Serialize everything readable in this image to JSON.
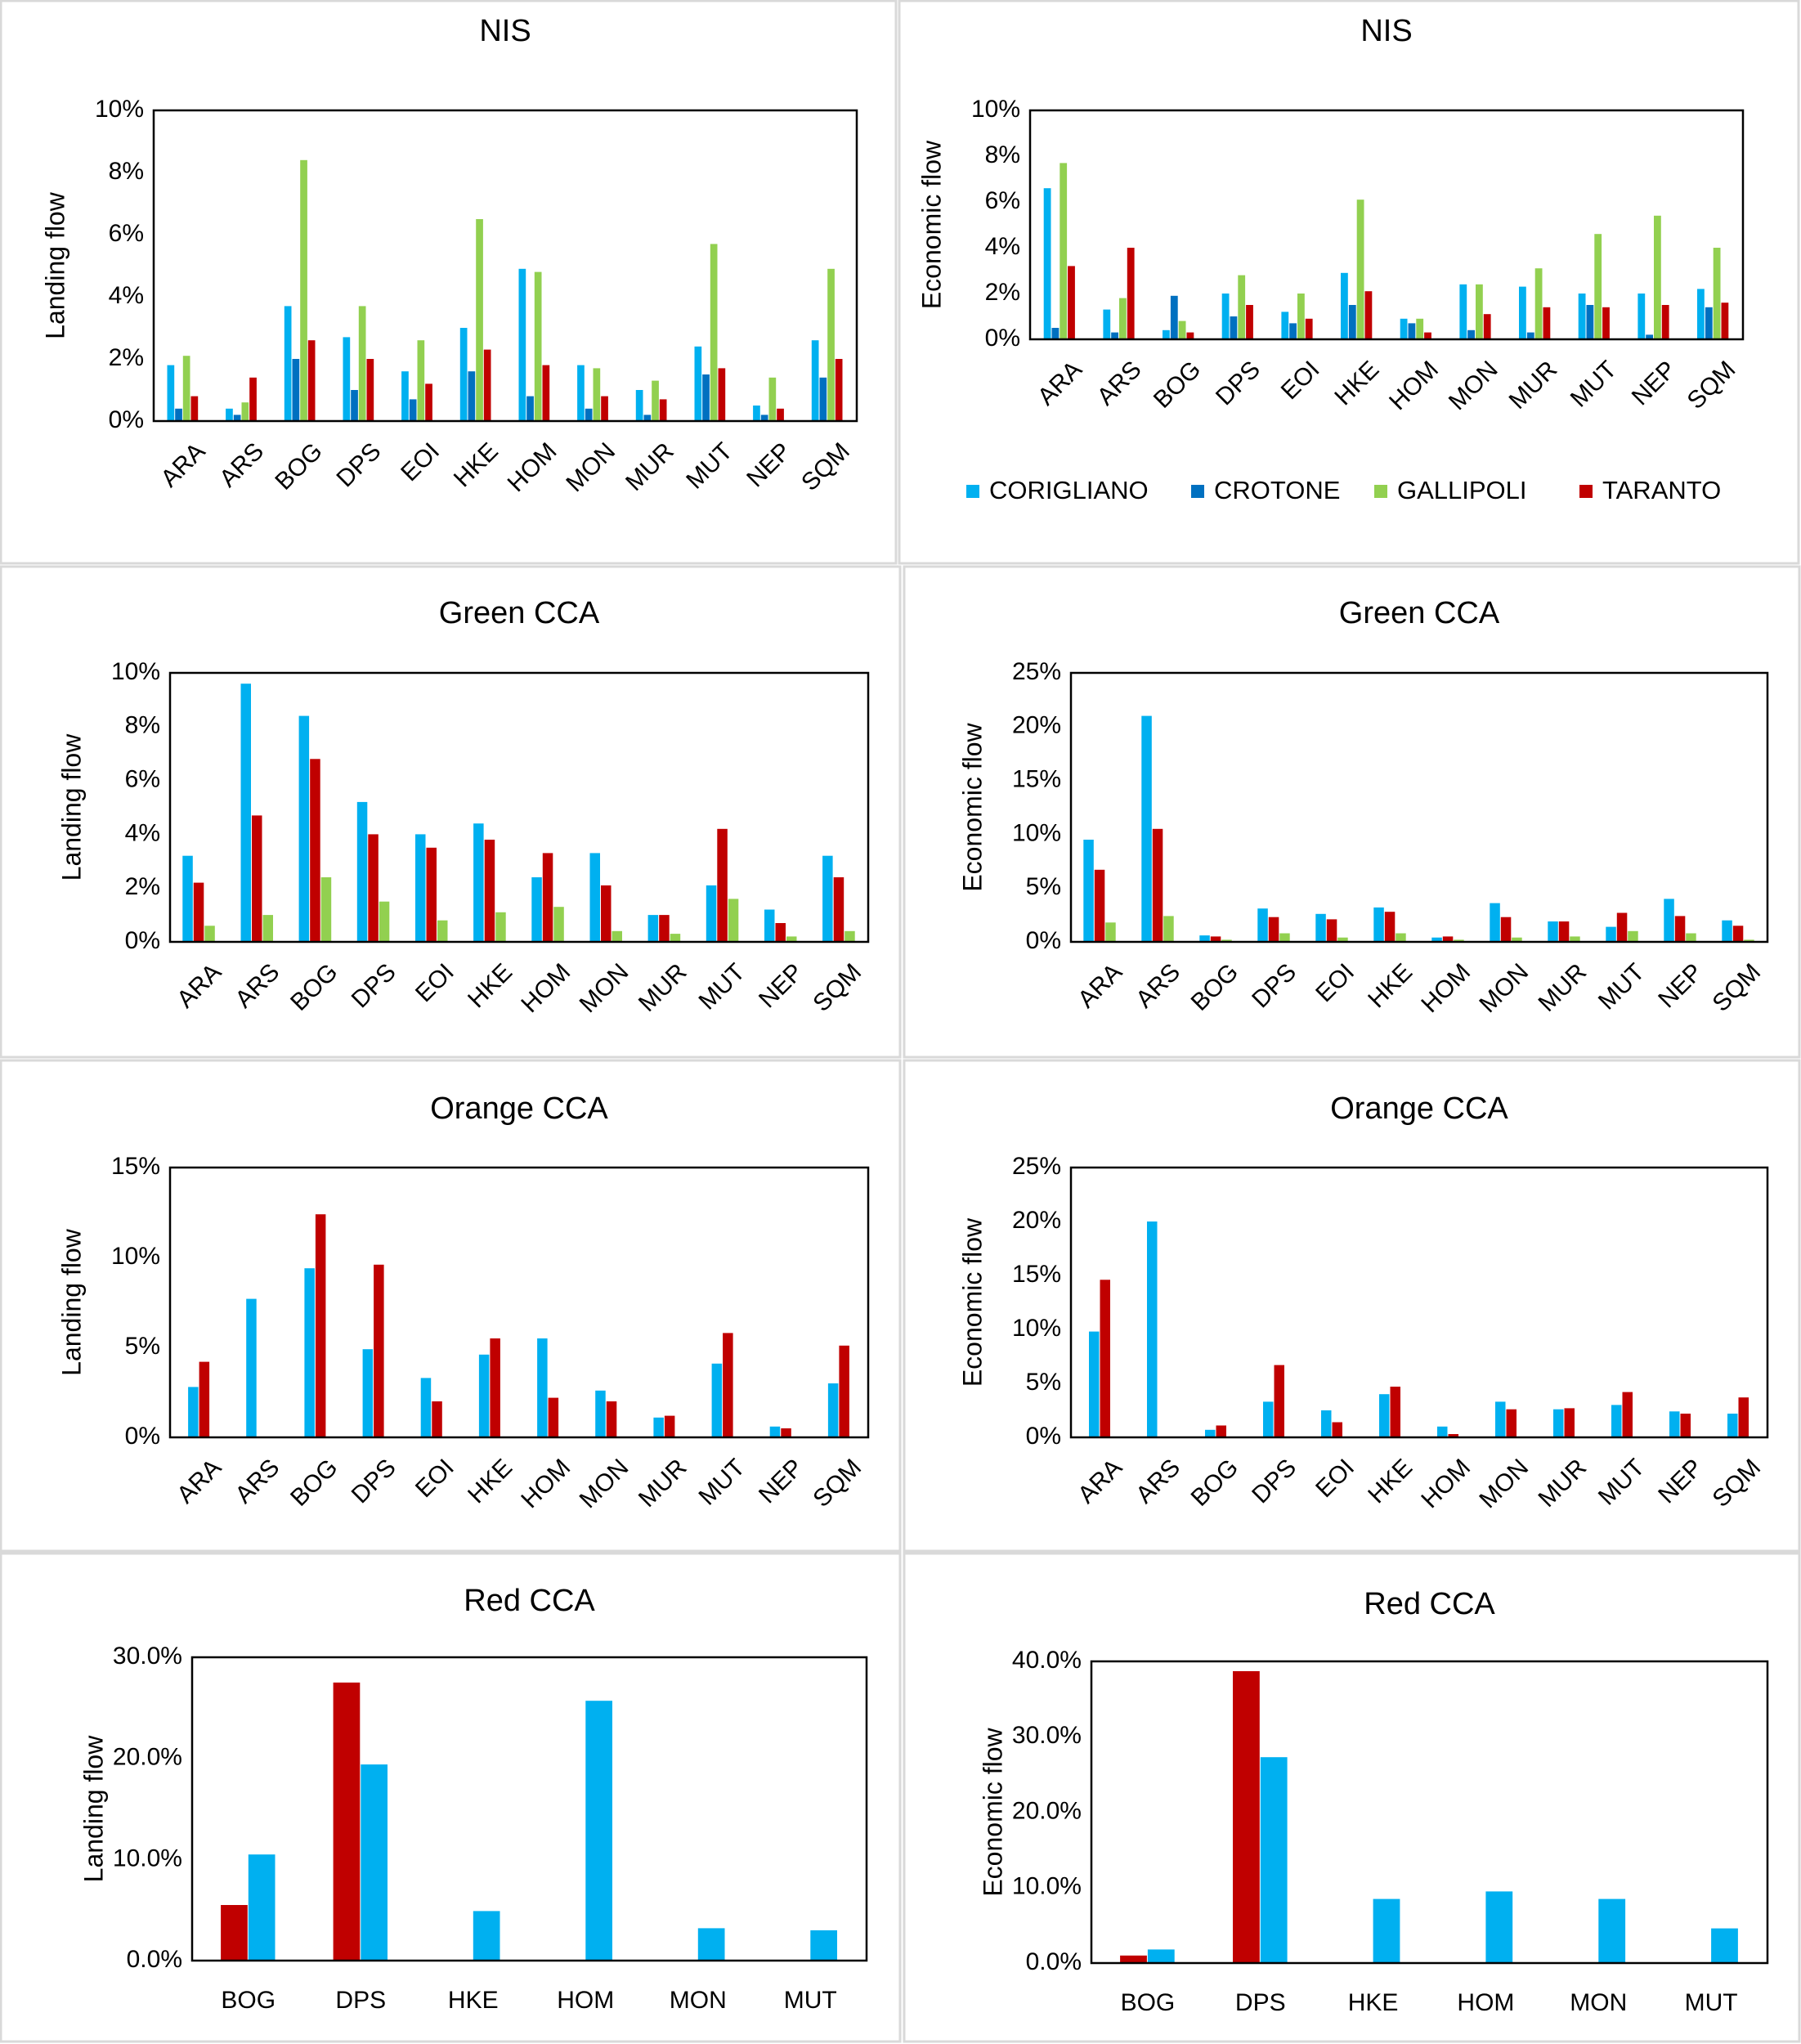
{
  "series_meta": [
    {
      "name": "CORIGLIANO",
      "color": "#00B0F0"
    },
    {
      "name": "CROTONE",
      "color": "#0070C0"
    },
    {
      "name": "GALLIPOLI",
      "color": "#92D050"
    },
    {
      "name": "TARANTO",
      "color": "#C00000"
    }
  ],
  "legend_labels": [
    "CORIGLIANO",
    "CROTONE",
    "GALLIPOLI",
    "TARANTO"
  ],
  "chart_data": [
    {
      "type": "bar",
      "title": "NIS",
      "ylabel": "Landing flow",
      "ylim": [
        0,
        10
      ],
      "yticks": [
        0,
        2,
        4,
        6,
        8,
        10
      ],
      "ytick_format": "%",
      "x_rotated": true,
      "grid": false,
      "legend": "none",
      "categories": [
        "ARA",
        "ARS",
        "BOG",
        "DPS",
        "EOI",
        "HKE",
        "HOM",
        "MON",
        "MUR",
        "MUT",
        "NEP",
        "SQM"
      ],
      "series": [
        {
          "name": "CORIGLIANO",
          "values": [
            1.8,
            0.4,
            3.7,
            2.7,
            1.6,
            3.0,
            4.9,
            1.8,
            1.0,
            2.4,
            0.5,
            2.6
          ]
        },
        {
          "name": "CROTONE",
          "values": [
            0.4,
            0.2,
            2.0,
            1.0,
            0.7,
            1.6,
            0.8,
            0.4,
            0.2,
            1.5,
            0.2,
            1.4
          ]
        },
        {
          "name": "GALLIPOLI",
          "values": [
            2.1,
            0.6,
            8.4,
            3.7,
            2.6,
            6.5,
            4.8,
            1.7,
            1.3,
            5.7,
            1.4,
            4.9
          ]
        },
        {
          "name": "TARANTO",
          "values": [
            0.8,
            1.4,
            2.6,
            2.0,
            1.2,
            2.3,
            1.8,
            0.8,
            0.7,
            1.7,
            0.4,
            2.0
          ]
        }
      ]
    },
    {
      "type": "bar",
      "title": "NIS",
      "ylabel": "Economic flow",
      "ylim": [
        0,
        10
      ],
      "yticks": [
        0,
        2,
        4,
        6,
        8,
        10
      ],
      "ytick_format": "%",
      "x_rotated": true,
      "grid": false,
      "legend": "bottom",
      "categories": [
        "ARA",
        "ARS",
        "BOG",
        "DPS",
        "EOI",
        "HKE",
        "HOM",
        "MON",
        "MUR",
        "MUT",
        "NEP",
        "SQM"
      ],
      "series": [
        {
          "name": "CORIGLIANO",
          "values": [
            6.6,
            1.3,
            0.4,
            2.0,
            1.2,
            2.9,
            0.9,
            2.4,
            2.3,
            2.0,
            2.0,
            2.2
          ]
        },
        {
          "name": "CROTONE",
          "values": [
            0.5,
            0.3,
            1.9,
            1.0,
            0.7,
            1.5,
            0.7,
            0.4,
            0.3,
            1.5,
            0.2,
            1.4
          ]
        },
        {
          "name": "GALLIPOLI",
          "values": [
            7.7,
            1.8,
            0.8,
            2.8,
            2.0,
            6.1,
            0.9,
            2.4,
            3.1,
            4.6,
            5.4,
            4.0
          ]
        },
        {
          "name": "TARANTO",
          "values": [
            3.2,
            4.0,
            0.3,
            1.5,
            0.9,
            2.1,
            0.3,
            1.1,
            1.4,
            1.4,
            1.5,
            1.6
          ]
        }
      ]
    },
    {
      "type": "bar",
      "title": "Green CCA",
      "ylabel": "Landing flow",
      "ylim": [
        0,
        10
      ],
      "yticks": [
        0,
        2,
        4,
        6,
        8,
        10
      ],
      "ytick_format": "%",
      "x_rotated": true,
      "grid": false,
      "legend": "none",
      "categories": [
        "ARA",
        "ARS",
        "BOG",
        "DPS",
        "EOI",
        "HKE",
        "HOM",
        "MON",
        "MUR",
        "MUT",
        "NEP",
        "SQM"
      ],
      "series": [
        {
          "name": "CORIGLIANO",
          "values": [
            3.2,
            9.6,
            8.4,
            5.2,
            4.0,
            4.4,
            2.4,
            3.3,
            1.0,
            2.1,
            1.2,
            3.2
          ]
        },
        {
          "name": "TARANTO",
          "values": [
            2.2,
            4.7,
            6.8,
            4.0,
            3.5,
            3.8,
            3.3,
            2.1,
            1.0,
            4.2,
            0.7,
            2.4
          ]
        },
        {
          "name": "GALLIPOLI",
          "values": [
            0.6,
            1.0,
            2.4,
            1.5,
            0.8,
            1.1,
            1.3,
            0.4,
            0.3,
            1.6,
            0.2,
            0.4
          ]
        }
      ]
    },
    {
      "type": "bar",
      "title": "Green CCA",
      "ylabel": "Economic flow",
      "ylim": [
        0,
        25
      ],
      "yticks": [
        0,
        5,
        10,
        15,
        20,
        25
      ],
      "ytick_format": "%",
      "x_rotated": true,
      "grid": false,
      "legend": "none",
      "categories": [
        "ARA",
        "ARS",
        "BOG",
        "DPS",
        "EOI",
        "HKE",
        "HOM",
        "MON",
        "MUR",
        "MUT",
        "NEP",
        "SQM"
      ],
      "series": [
        {
          "name": "CORIGLIANO",
          "values": [
            9.5,
            21.0,
            0.6,
            3.1,
            2.6,
            3.2,
            0.4,
            3.6,
            1.9,
            1.4,
            4.0,
            2.0
          ]
        },
        {
          "name": "TARANTO",
          "values": [
            6.7,
            10.5,
            0.5,
            2.3,
            2.1,
            2.8,
            0.5,
            2.3,
            1.9,
            2.7,
            2.4,
            1.5
          ]
        },
        {
          "name": "GALLIPOLI",
          "values": [
            1.8,
            2.4,
            0.2,
            0.8,
            0.4,
            0.8,
            0.2,
            0.4,
            0.5,
            1.0,
            0.8,
            0.2
          ]
        }
      ]
    },
    {
      "type": "bar",
      "title": "Orange CCA",
      "ylabel": "Landing flow",
      "ylim": [
        0,
        15
      ],
      "yticks": [
        0,
        5,
        10,
        15
      ],
      "ytick_format": "%",
      "x_rotated": true,
      "grid": false,
      "legend": "none",
      "categories": [
        "ARA",
        "ARS",
        "BOG",
        "DPS",
        "EOI",
        "HKE",
        "HOM",
        "MON",
        "MUR",
        "MUT",
        "NEP",
        "SQM"
      ],
      "series": [
        {
          "name": "CORIGLIANO",
          "values": [
            2.8,
            7.7,
            9.4,
            4.9,
            3.3,
            4.6,
            5.5,
            2.6,
            1.1,
            4.1,
            0.6,
            3.0
          ]
        },
        {
          "name": "TARANTO",
          "values": [
            4.2,
            0,
            12.4,
            9.6,
            2.0,
            5.5,
            2.2,
            2.0,
            1.2,
            5.8,
            0.5,
            5.1
          ]
        }
      ]
    },
    {
      "type": "bar",
      "title": "Orange CCA",
      "ylabel": "Economic flow",
      "ylim": [
        0,
        25
      ],
      "yticks": [
        0,
        5,
        10,
        15,
        20,
        25
      ],
      "ytick_format": "%",
      "x_rotated": true,
      "grid": false,
      "legend": "none",
      "categories": [
        "ARA",
        "ARS",
        "BOG",
        "DPS",
        "EOI",
        "HKE",
        "HOM",
        "MON",
        "MUR",
        "MUT",
        "NEP",
        "SQM"
      ],
      "series": [
        {
          "name": "CORIGLIANO",
          "values": [
            9.8,
            20.0,
            0.7,
            3.3,
            2.5,
            4.0,
            1.0,
            3.3,
            2.6,
            3.0,
            2.4,
            2.2
          ]
        },
        {
          "name": "TARANTO",
          "values": [
            14.6,
            0,
            1.1,
            6.7,
            1.4,
            4.7,
            0.3,
            2.6,
            2.7,
            4.2,
            2.2,
            3.7
          ]
        }
      ]
    },
    {
      "type": "bar",
      "title": "Red CCA",
      "ylabel": "Landing flow",
      "ylim": [
        0,
        30
      ],
      "yticks": [
        0,
        10,
        20,
        30
      ],
      "ytick_format": "%.1",
      "x_rotated": false,
      "grid": false,
      "legend": "none",
      "categories": [
        "BOG",
        "DPS",
        "HKE",
        "HOM",
        "MON",
        "MUT"
      ],
      "series": [
        {
          "name": "TARANTO",
          "values": [
            5.5,
            27.5,
            0,
            0,
            0,
            0
          ]
        },
        {
          "name": "CORIGLIANO",
          "values": [
            10.5,
            19.4,
            4.9,
            25.7,
            3.2,
            3.0
          ]
        }
      ]
    },
    {
      "type": "bar",
      "title": "Red CCA",
      "ylabel": "Economic flow",
      "ylim": [
        0,
        40
      ],
      "yticks": [
        0,
        10,
        20,
        30,
        40
      ],
      "ytick_format": "%.1",
      "x_rotated": false,
      "grid": false,
      "legend": "none",
      "categories": [
        "BOG",
        "DPS",
        "HKE",
        "HOM",
        "MON",
        "MUT"
      ],
      "series": [
        {
          "name": "TARANTO",
          "values": [
            1.0,
            38.7,
            0,
            0,
            0,
            0
          ]
        },
        {
          "name": "CORIGLIANO",
          "values": [
            1.8,
            27.3,
            8.5,
            9.5,
            8.5,
            4.6
          ]
        }
      ]
    }
  ]
}
